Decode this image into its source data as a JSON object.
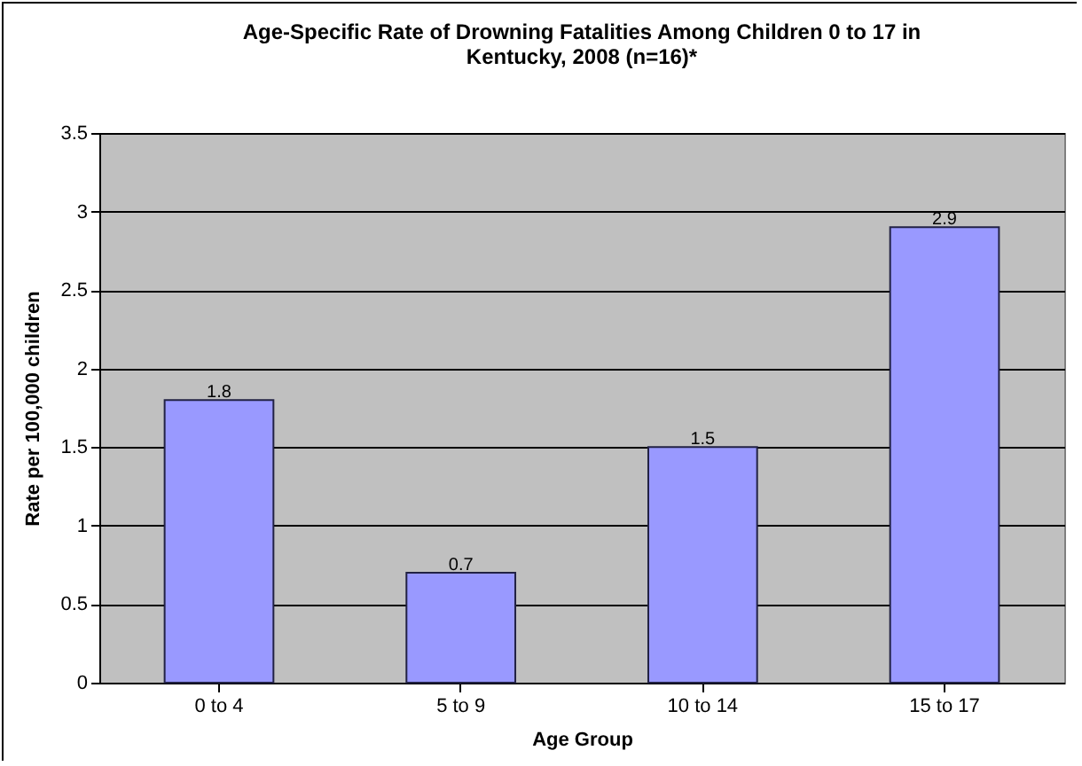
{
  "chart_data": {
    "type": "bar",
    "title": "Age-Specific Rate of Drowning Fatalities Among Children 0 to 17 in Kentucky, 2008 (n=16)*",
    "xlabel": "Age Group",
    "ylabel": "Rate per 100,000 children",
    "categories": [
      "0 to 4",
      "5 to 9",
      "10 to 14",
      "15 to 17"
    ],
    "values": [
      1.8,
      0.7,
      1.5,
      2.9
    ],
    "color": "#9999ff",
    "ylim": [
      0,
      3.5
    ],
    "yticks": [
      0,
      0.5,
      1,
      1.5,
      2,
      2.5,
      3,
      3.5
    ],
    "grid": "y",
    "data_labels": true
  }
}
